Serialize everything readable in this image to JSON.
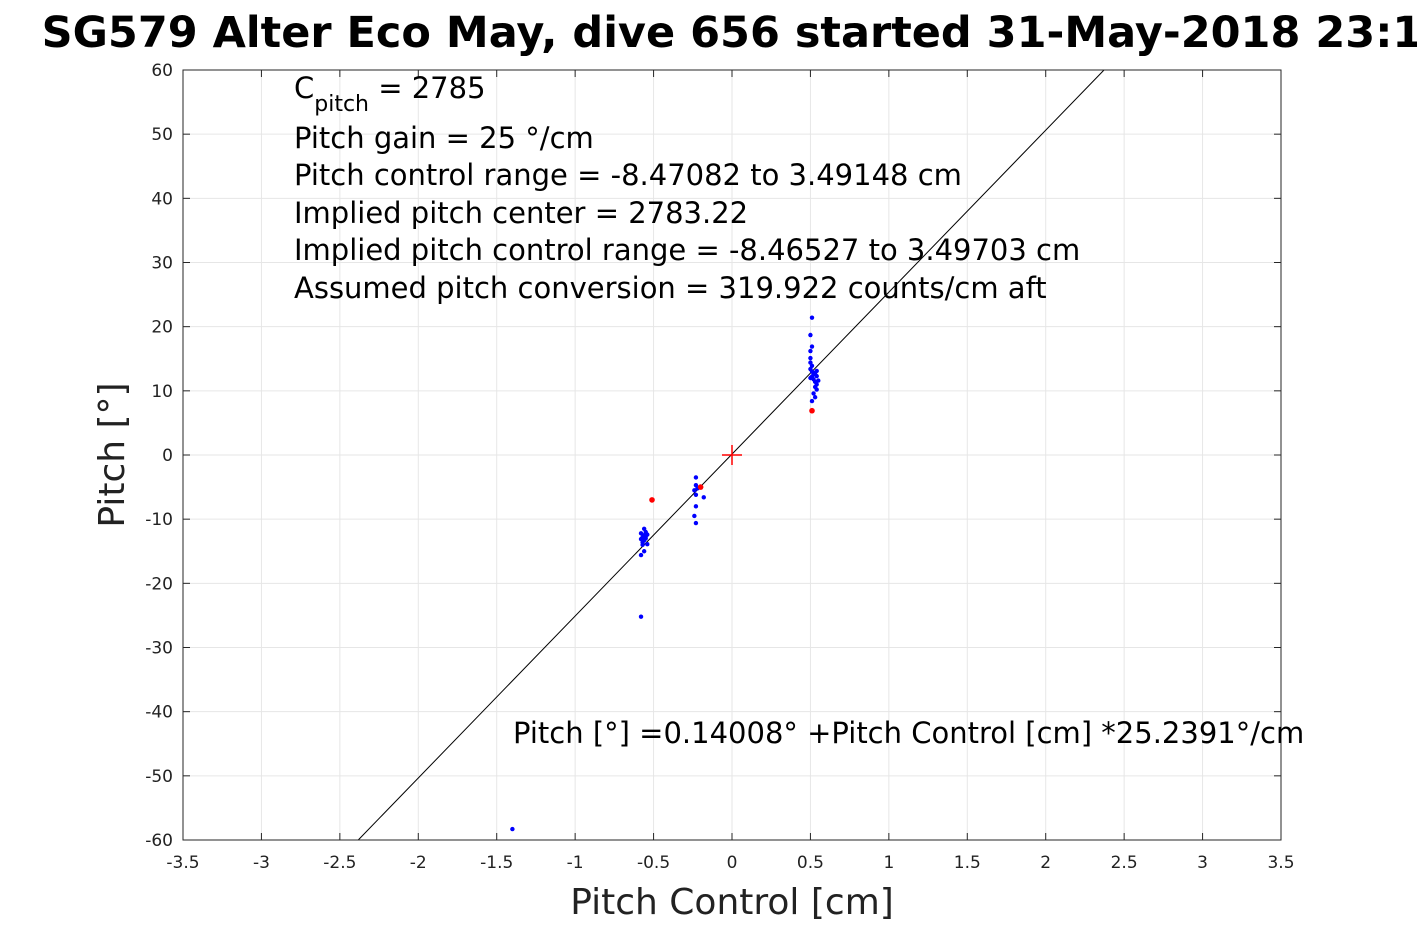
{
  "chart_data": {
    "type": "scatter",
    "title": "SG579 Alter Eco May, dive 656 started 31-May-2018 23:1",
    "xlabel": "Pitch Control [cm]",
    "ylabel": "Pitch [°]",
    "xlim": [
      -3.5,
      3.5
    ],
    "ylim": [
      -60,
      60
    ],
    "xticks": [
      -3.5,
      -3,
      -2.5,
      -2,
      -1.5,
      -1,
      -0.5,
      0,
      0.5,
      1,
      1.5,
      2,
      2.5,
      3,
      3.5
    ],
    "xtick_labels": [
      "-3.5",
      "-3",
      "-2.5",
      "-2",
      "-1.5",
      "-1",
      "-0.5",
      "0",
      "0.5",
      "1",
      "1.5",
      "2",
      "2.5",
      "3",
      "3.5"
    ],
    "yticks": [
      -60,
      -50,
      -40,
      -30,
      -20,
      -10,
      0,
      10,
      20,
      30,
      40,
      50,
      60
    ],
    "ytick_labels": [
      "-60",
      "-50",
      "-40",
      "-30",
      "-20",
      "-10",
      "0",
      "10",
      "20",
      "30",
      "40",
      "50",
      "60"
    ],
    "grid": true,
    "series": [
      {
        "color": "#0000ff",
        "marker": "dot",
        "points": [
          [
            0.51,
            21.4
          ],
          [
            0.5,
            18.7
          ],
          [
            0.51,
            16.9
          ],
          [
            0.5,
            16.2
          ],
          [
            0.5,
            15.1
          ],
          [
            0.5,
            14.4
          ],
          [
            0.51,
            13.9
          ],
          [
            0.5,
            13.4
          ],
          [
            0.51,
            13.0
          ],
          [
            0.52,
            12.6
          ],
          [
            0.51,
            12.2
          ],
          [
            0.5,
            12.0
          ],
          [
            0.53,
            12.8
          ],
          [
            0.54,
            12.3
          ],
          [
            0.52,
            11.8
          ],
          [
            0.53,
            11.4
          ],
          [
            0.54,
            11.0
          ],
          [
            0.53,
            10.6
          ],
          [
            0.54,
            10.2
          ],
          [
            0.52,
            9.6
          ],
          [
            0.53,
            9.0
          ],
          [
            0.51,
            8.4
          ],
          [
            0.55,
            11.6
          ],
          [
            0.54,
            13.1
          ],
          [
            -0.23,
            -3.5
          ],
          [
            -0.23,
            -4.7
          ],
          [
            -0.22,
            -5.2
          ],
          [
            -0.24,
            -5.5
          ],
          [
            -0.23,
            -6.2
          ],
          [
            -0.18,
            -6.6
          ],
          [
            -0.23,
            -8.0
          ],
          [
            -0.24,
            -9.5
          ],
          [
            -0.23,
            -10.6
          ],
          [
            -0.56,
            -11.5
          ],
          [
            -0.55,
            -12.0
          ],
          [
            -0.56,
            -12.5
          ],
          [
            -0.57,
            -12.8
          ],
          [
            -0.55,
            -13.0
          ],
          [
            -0.56,
            -13.3
          ],
          [
            -0.57,
            -13.6
          ],
          [
            -0.54,
            -13.9
          ],
          [
            -0.55,
            -12.7
          ],
          [
            -0.58,
            -13.1
          ],
          [
            -0.54,
            -12.4
          ],
          [
            -0.57,
            -14.0
          ],
          [
            -0.58,
            -12.2
          ],
          [
            -0.56,
            -15.0
          ],
          [
            -0.58,
            -15.6
          ],
          [
            -0.58,
            -25.2
          ],
          [
            -1.4,
            -58.3
          ]
        ]
      },
      {
        "color": "#ff0000",
        "marker": "dot",
        "points": [
          [
            0.51,
            6.9
          ],
          [
            -0.51,
            -7.0
          ],
          [
            -0.2,
            -5.0
          ]
        ]
      }
    ],
    "fit_line": {
      "color": "#000000",
      "intercept": 0.14008,
      "slope": 25.2391
    },
    "center_marker": {
      "color": "#ff0000",
      "x": 0,
      "y": 0,
      "marker": "plus"
    },
    "annotations": {
      "cpitch": {
        "main": "C",
        "sub": "pitch",
        "rest": " = 2785"
      },
      "lines": [
        "Pitch gain = 25 °/cm",
        "Pitch control range = -8.47082 to 3.49148 cm",
        "Implied pitch center = 2783.22",
        "Implied pitch control range = -8.46527 to 3.49703 cm",
        "Assumed pitch conversion = 319.922 counts/cm aft"
      ],
      "fit_equation": "Pitch [°] =0.14008° +Pitch Control [cm] *25.2391°/cm"
    }
  }
}
